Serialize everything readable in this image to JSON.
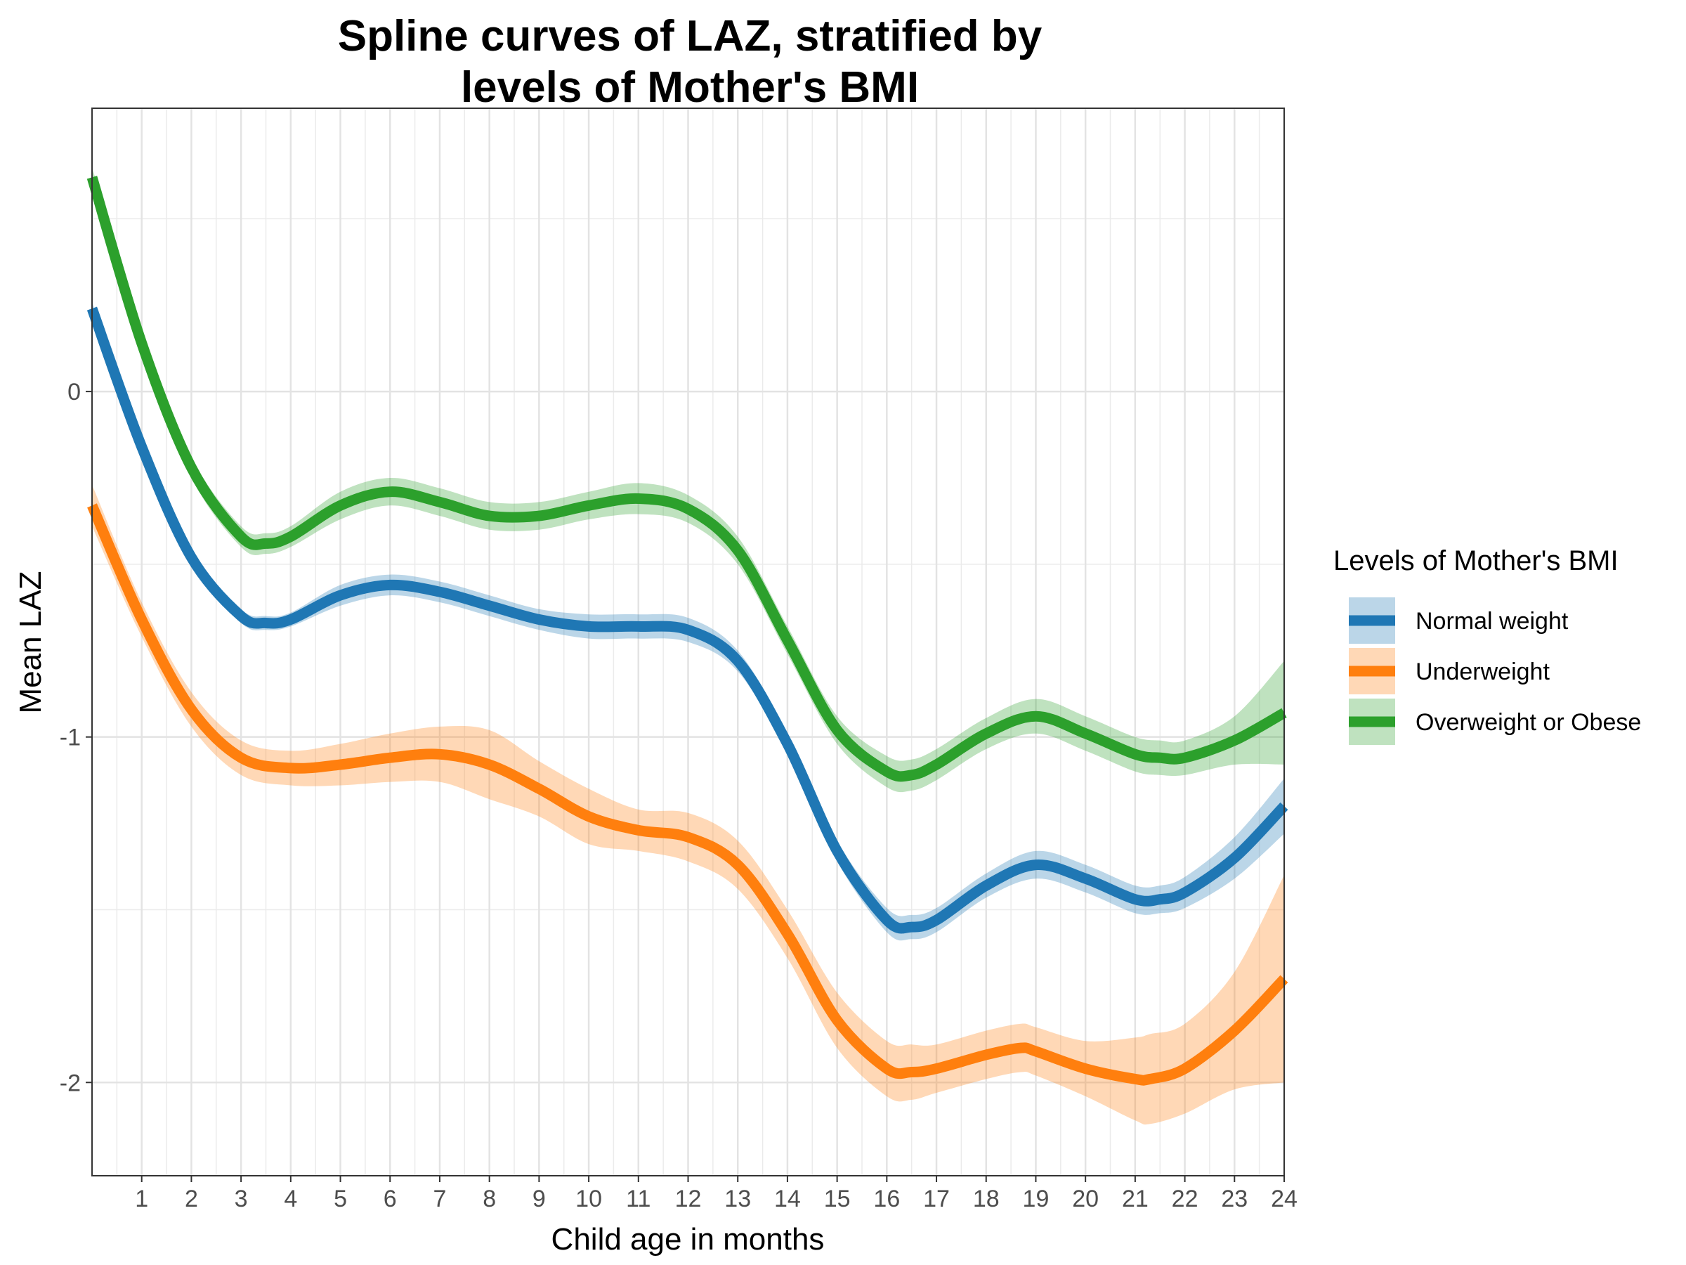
{
  "chart_data": {
    "type": "line",
    "title": [
      "Spline curves of LAZ, stratified by",
      "levels of Mother's BMI"
    ],
    "xlabel": "Child age in months",
    "ylabel": "Mean LAZ",
    "xlim": [
      0,
      24
    ],
    "ylim": [
      -2.27,
      0.82
    ],
    "x_ticks": [
      1,
      2,
      3,
      4,
      5,
      6,
      7,
      8,
      9,
      10,
      11,
      12,
      13,
      14,
      15,
      16,
      17,
      18,
      19,
      20,
      21,
      22,
      23,
      24
    ],
    "y_ticks": [
      0,
      -1,
      -2
    ],
    "y_tick_labels": [
      "0",
      "-1",
      "-2"
    ],
    "grid": true,
    "legend": {
      "title": "Levels of Mother's BMI",
      "position": "right"
    },
    "series": [
      {
        "name": "Normal weight",
        "color": "#1f77b4",
        "x": [
          0,
          1,
          2,
          3,
          3.5,
          4,
          5,
          6,
          7,
          8,
          9,
          10,
          11,
          12,
          13,
          14,
          15,
          16,
          16.5,
          17,
          18,
          19,
          20,
          21,
          21.5,
          22,
          23,
          24
        ],
        "y": [
          0.24,
          -0.16,
          -0.48,
          -0.65,
          -0.67,
          -0.66,
          -0.59,
          -0.56,
          -0.58,
          -0.62,
          -0.66,
          -0.68,
          -0.68,
          -0.69,
          -0.78,
          -1.02,
          -1.33,
          -1.53,
          -1.55,
          -1.53,
          -1.43,
          -1.37,
          -1.41,
          -1.47,
          -1.47,
          -1.45,
          -1.35,
          -1.2
        ],
        "ci_halfwidth": [
          0.02,
          0.02,
          0.02,
          0.02,
          0.02,
          0.02,
          0.03,
          0.03,
          0.03,
          0.03,
          0.03,
          0.035,
          0.035,
          0.035,
          0.03,
          0.03,
          0.03,
          0.035,
          0.035,
          0.035,
          0.035,
          0.04,
          0.04,
          0.04,
          0.04,
          0.045,
          0.06,
          0.08
        ]
      },
      {
        "name": "Underweight",
        "color": "#ff7f0e",
        "x": [
          0,
          1,
          2,
          3,
          4,
          5,
          6,
          7,
          8,
          9,
          10,
          11,
          12,
          13,
          14,
          15,
          16,
          16.5,
          17,
          18,
          18.7,
          19,
          20,
          21,
          21.3,
          22,
          23,
          24
        ],
        "y": [
          -0.33,
          -0.66,
          -0.92,
          -1.06,
          -1.09,
          -1.08,
          -1.06,
          -1.05,
          -1.08,
          -1.15,
          -1.23,
          -1.27,
          -1.29,
          -1.37,
          -1.57,
          -1.82,
          -1.96,
          -1.97,
          -1.96,
          -1.92,
          -1.9,
          -1.91,
          -1.96,
          -1.99,
          -1.99,
          -1.96,
          -1.85,
          -1.7
        ],
        "ci_halfwidth": [
          0.06,
          0.05,
          0.05,
          0.05,
          0.05,
          0.06,
          0.07,
          0.08,
          0.1,
          0.08,
          0.08,
          0.06,
          0.07,
          0.07,
          0.07,
          0.08,
          0.08,
          0.08,
          0.07,
          0.07,
          0.07,
          0.07,
          0.08,
          0.12,
          0.13,
          0.13,
          0.17,
          0.3
        ]
      },
      {
        "name": "Overweight or Obese",
        "color": "#2ca02c",
        "x": [
          0,
          1,
          2,
          3,
          3.5,
          4,
          5,
          6,
          7,
          8,
          9,
          10,
          11,
          12,
          13,
          14,
          15,
          16,
          16.5,
          17,
          18,
          19,
          20,
          21,
          21.5,
          22,
          23,
          24
        ],
        "y": [
          0.62,
          0.14,
          -0.22,
          -0.42,
          -0.44,
          -0.42,
          -0.33,
          -0.29,
          -0.32,
          -0.36,
          -0.36,
          -0.33,
          -0.31,
          -0.34,
          -0.46,
          -0.72,
          -0.98,
          -1.1,
          -1.11,
          -1.08,
          -0.99,
          -0.94,
          -0.99,
          -1.05,
          -1.06,
          -1.06,
          -1.01,
          -0.93
        ],
        "ci_halfwidth": [
          0.03,
          0.03,
          0.03,
          0.03,
          0.03,
          0.03,
          0.04,
          0.04,
          0.04,
          0.04,
          0.04,
          0.04,
          0.045,
          0.04,
          0.04,
          0.04,
          0.04,
          0.045,
          0.045,
          0.045,
          0.045,
          0.05,
          0.05,
          0.05,
          0.05,
          0.05,
          0.07,
          0.15
        ]
      }
    ]
  }
}
